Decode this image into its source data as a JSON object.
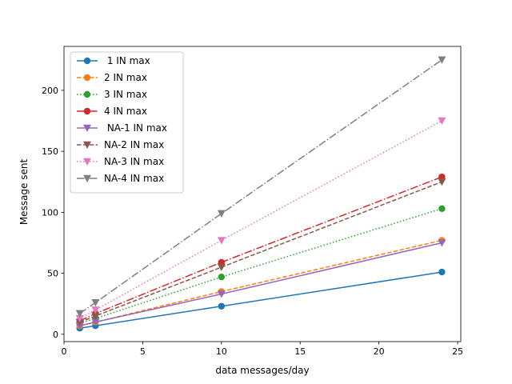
{
  "chart_data": {
    "type": "line",
    "title": "",
    "xlabel": "data messages/day",
    "ylabel": "Message sent",
    "xlim": [
      0.0,
      25.2
    ],
    "ylim": [
      -6.0,
      236.0
    ],
    "xticks": [
      0,
      5,
      10,
      15,
      20,
      25
    ],
    "yticks": [
      0,
      50,
      100,
      150,
      200
    ],
    "grid": false,
    "legend_position": "top-left",
    "x": [
      1,
      2,
      10,
      24
    ],
    "series": [
      {
        "name": " 1 IN max",
        "color": "#1f77b4",
        "dash": "solid",
        "marker": "circle",
        "values": [
          5,
          7,
          23,
          51
        ]
      },
      {
        "name": "2 IN max",
        "color": "#ff7f0e",
        "dash": "dashed",
        "marker": "circle",
        "values": [
          7,
          10,
          35,
          77
        ]
      },
      {
        "name": "3 IN max",
        "color": "#2ca02c",
        "dash": "dotted",
        "marker": "circle",
        "values": [
          9,
          13,
          47,
          103
        ]
      },
      {
        "name": "4 IN max",
        "color": "#d62728",
        "dash": "dashdot",
        "marker": "circle",
        "values": [
          11,
          17,
          59,
          129
        ]
      },
      {
        "name": " NA-1 IN max",
        "color": "#9467bd",
        "dash": "solid",
        "marker": "triangle-down",
        "values": [
          7,
          10,
          33,
          75
        ]
      },
      {
        "name": "NA-2 IN max",
        "color": "#8c564b",
        "dash": "dashed",
        "marker": "triangle-down",
        "values": [
          10,
          15,
          55,
          125
        ]
      },
      {
        "name": "NA-3 IN max",
        "color": "#e377c2",
        "dash": "dotted",
        "marker": "triangle-down",
        "values": [
          13,
          20,
          77,
          175
        ]
      },
      {
        "name": "NA-4 IN max",
        "color": "#7f7f7f",
        "dash": "dashdot",
        "marker": "triangle-down",
        "values": [
          17,
          26,
          99,
          225
        ]
      }
    ]
  }
}
